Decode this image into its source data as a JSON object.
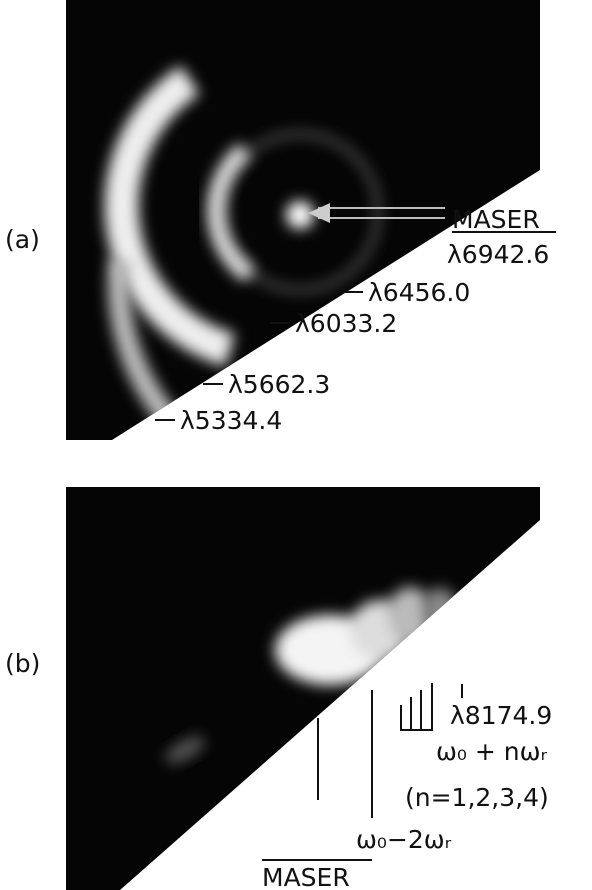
{
  "panel_a": {
    "label": "(a)",
    "maser_label": "MASER",
    "maser_wavelength": "λ6942.6",
    "lines": [
      "λ6456.0",
      "λ6033.2",
      "λ5662.3",
      "λ5334.4"
    ]
  },
  "panel_b": {
    "label": "(b)",
    "wavelength": "λ8174.9",
    "sum_label": "ω₀ + nωᵣ",
    "n_values": "(n=1,2,3,4)",
    "difference_label": "ω₀−2ωᵣ",
    "maser_label": "MASER"
  }
}
